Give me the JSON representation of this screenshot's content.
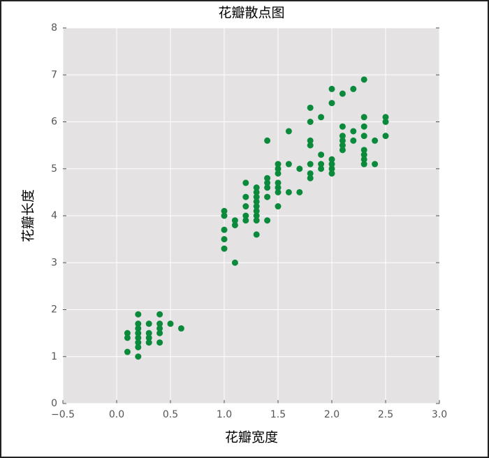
{
  "chart_data": {
    "type": "scatter",
    "title": "花瓣散点图",
    "xlabel": "花瓣宽度",
    "ylabel": "花瓣长度",
    "x": [
      0.1,
      0.1,
      0.1,
      0.2,
      0.2,
      0.2,
      0.2,
      0.2,
      0.2,
      0.2,
      0.2,
      0.3,
      0.3,
      0.3,
      0.3,
      0.4,
      0.4,
      0.4,
      0.4,
      0.4,
      0.5,
      0.6,
      1.0,
      1.0,
      1.0,
      1.0,
      1.0,
      1.1,
      1.1,
      1.1,
      1.2,
      1.2,
      1.2,
      1.2,
      1.2,
      1.3,
      1.3,
      1.3,
      1.3,
      1.3,
      1.3,
      1.3,
      1.3,
      1.3,
      1.4,
      1.4,
      1.4,
      1.4,
      1.4,
      1.4,
      1.5,
      1.5,
      1.5,
      1.5,
      1.5,
      1.5,
      1.5,
      1.6,
      1.6,
      1.6,
      1.7,
      1.7,
      1.8,
      1.8,
      1.8,
      1.8,
      1.8,
      1.8,
      1.8,
      1.9,
      1.9,
      1.9,
      1.9,
      2.0,
      2.0,
      2.0,
      2.0,
      2.0,
      2.0,
      2.1,
      2.1,
      2.1,
      2.1,
      2.1,
      2.1,
      2.2,
      2.2,
      2.2,
      2.3,
      2.3,
      2.3,
      2.3,
      2.3,
      2.3,
      2.3,
      2.3,
      2.4,
      2.4,
      2.5,
      2.5,
      2.5
    ],
    "y": [
      1.1,
      1.4,
      1.5,
      1.0,
      1.2,
      1.3,
      1.4,
      1.5,
      1.6,
      1.7,
      1.9,
      1.3,
      1.4,
      1.5,
      1.7,
      1.3,
      1.5,
      1.6,
      1.7,
      1.9,
      1.7,
      1.6,
      3.3,
      3.5,
      3.7,
      4.0,
      4.1,
      3.0,
      3.8,
      3.9,
      3.9,
      4.0,
      4.2,
      4.4,
      4.7,
      3.6,
      3.9,
      4.0,
      4.1,
      4.2,
      4.3,
      4.4,
      4.5,
      4.6,
      3.9,
      4.4,
      4.6,
      4.7,
      4.8,
      5.6,
      4.2,
      4.5,
      4.6,
      4.7,
      4.9,
      5.0,
      5.1,
      4.5,
      5.1,
      5.8,
      4.5,
      5.0,
      4.8,
      4.9,
      5.1,
      5.5,
      5.6,
      6.0,
      6.3,
      5.0,
      5.1,
      5.3,
      6.1,
      4.9,
      5.0,
      5.1,
      5.2,
      6.4,
      6.7,
      5.4,
      5.5,
      5.6,
      5.7,
      5.9,
      6.6,
      5.6,
      5.8,
      6.7,
      5.1,
      5.2,
      5.3,
      5.4,
      5.7,
      5.9,
      6.1,
      6.9,
      5.1,
      5.6,
      5.7,
      6.0,
      6.1
    ],
    "color": "#0b8a3c",
    "xlim": [
      -0.5,
      3.0
    ],
    "ylim": [
      0,
      8
    ],
    "xticks": [
      {
        "value": -0.5,
        "label": "−0.5"
      },
      {
        "value": 0,
        "label": "0.0"
      },
      0.5,
      {
        "value": 1,
        "label": "1.0"
      },
      1.5,
      {
        "value": 2,
        "label": "2.0"
      },
      2.5,
      {
        "value": 3,
        "label": "3.0"
      }
    ],
    "yticks": [
      0,
      1,
      2,
      3,
      4,
      5,
      6,
      7,
      8
    ],
    "grid": true
  }
}
